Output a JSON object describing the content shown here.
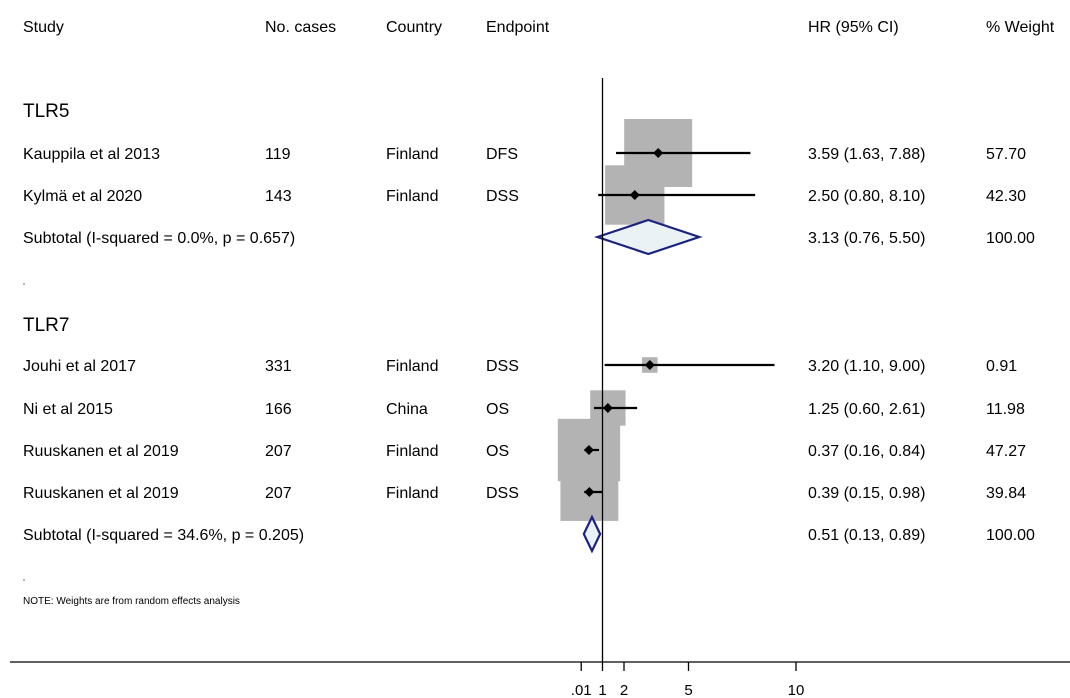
{
  "columns": {
    "study": "Study",
    "cases": "No. cases",
    "country": "Country",
    "endpoint": "Endpoint",
    "hr": "HR (95% CI)",
    "weight": "% Weight"
  },
  "note": "NOTE: Weights are from random effects analysis",
  "chart_data": {
    "type": "forest",
    "null_line": 1,
    "xticks": [
      0.01,
      1,
      2,
      5,
      10
    ],
    "xtick_labels": [
      ".01",
      "1",
      "2",
      "5",
      "10"
    ],
    "groups": [
      {
        "label": "TLR5",
        "studies": [
          {
            "study": "Kauppila et al 2013",
            "cases": "119",
            "country": "Finland",
            "endpoint": "DFS",
            "hr": 3.59,
            "lo": 1.63,
            "hi": 7.88,
            "hr_text": "3.59 (1.63, 7.88)",
            "weight": 57.7,
            "weight_text": "57.70"
          },
          {
            "study": "Kylmä et al 2020",
            "cases": "143",
            "country": "Finland",
            "endpoint": "DSS",
            "hr": 2.5,
            "lo": 0.8,
            "hi": 8.1,
            "hr_text": "2.50 (0.80, 8.10)",
            "weight": 42.3,
            "weight_text": "42.30"
          }
        ],
        "subtotal": {
          "label": "Subtotal  (I-squared = 0.0%, p = 0.657)",
          "hr": 3.13,
          "lo": 0.76,
          "hi": 5.5,
          "hr_text": "3.13 (0.76, 5.50)",
          "weight_text": "100.00"
        }
      },
      {
        "label": "TLR7",
        "studies": [
          {
            "study": "Jouhi et al 2017",
            "cases": "331",
            "country": "Finland",
            "endpoint": "DSS",
            "hr": 3.2,
            "lo": 1.1,
            "hi": 9.0,
            "hr_text": "3.20 (1.10, 9.00)",
            "weight": 0.91,
            "weight_text": "0.91"
          },
          {
            "study": "Ni et al 2015",
            "cases": "166",
            "country": "China",
            "endpoint": "OS",
            "hr": 1.25,
            "lo": 0.6,
            "hi": 2.61,
            "hr_text": "1.25 (0.60, 2.61)",
            "weight": 11.98,
            "weight_text": "11.98"
          },
          {
            "study": "Ruuskanen et al 2019",
            "cases": "207",
            "country": "Finland",
            "endpoint": "OS",
            "hr": 0.37,
            "lo": 0.16,
            "hi": 0.84,
            "hr_text": "0.37 (0.16, 0.84)",
            "weight": 47.27,
            "weight_text": "47.27"
          },
          {
            "study": "Ruuskanen et al 2019",
            "cases": "207",
            "country": "Finland",
            "endpoint": "DSS",
            "hr": 0.39,
            "lo": 0.15,
            "hi": 0.98,
            "hr_text": "0.39 (0.15, 0.98)",
            "weight": 39.84,
            "weight_text": "39.84"
          }
        ],
        "subtotal": {
          "label": "Subtotal  (I-squared = 34.6%, p = 0.205)",
          "hr": 0.51,
          "lo": 0.13,
          "hi": 0.89,
          "hr_text": "0.51 (0.13, 0.89)",
          "weight_text": "100.00"
        }
      }
    ]
  }
}
